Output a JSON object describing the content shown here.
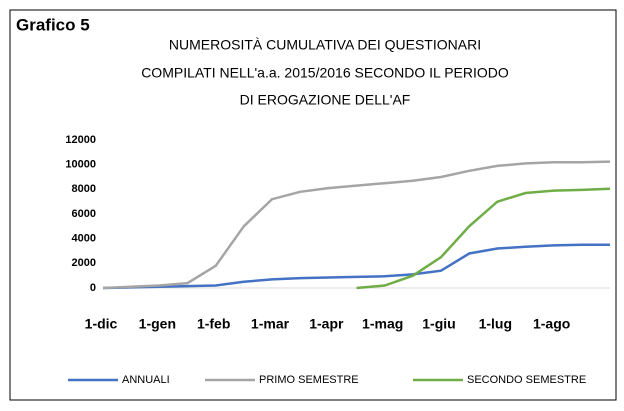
{
  "label": "Grafico 5",
  "chart_data": {
    "type": "line",
    "title": [
      "NUMEROSITÀ CUMULATIVA DEI QUESTIONARI",
      "COMPILATI NELL'a.a. 2015/2016 SECONDO IL PERIODO",
      "DI EROGAZIONE DELL'AF"
    ],
    "categories": [
      "1-dic",
      null,
      "1-gen",
      null,
      "1-feb",
      null,
      "1-mar",
      null,
      "1-apr",
      null,
      "1-mag",
      null,
      "1-giu",
      null,
      "1-lug",
      null,
      "1-ago",
      null,
      null
    ],
    "series": [
      {
        "name": "ANNUALI",
        "color": "#4472c4",
        "values": [
          0,
          50,
          100,
          150,
          200,
          500,
          700,
          800,
          850,
          900,
          950,
          1100,
          1400,
          2800,
          3200,
          3350,
          3450,
          3500,
          3500
        ]
      },
      {
        "name": "PRIMO SEMESTRE",
        "color": "#a5a5a5",
        "values": [
          0,
          100,
          200,
          400,
          1800,
          5000,
          7200,
          7800,
          8100,
          8300,
          8500,
          8700,
          9000,
          9500,
          9900,
          10100,
          10200,
          10200,
          10250
        ]
      },
      {
        "name": "SECONDO SEMESTRE",
        "color": "#70ad47",
        "values": [
          null,
          null,
          null,
          null,
          null,
          null,
          null,
          null,
          null,
          0,
          200,
          1000,
          2500,
          5000,
          7000,
          7700,
          7900,
          7950,
          8050
        ]
      }
    ],
    "ylim": [
      0,
      12000
    ],
    "yticks": [
      0,
      2000,
      4000,
      6000,
      8000,
      10000,
      12000
    ],
    "grid": false,
    "legend": "bottom"
  }
}
